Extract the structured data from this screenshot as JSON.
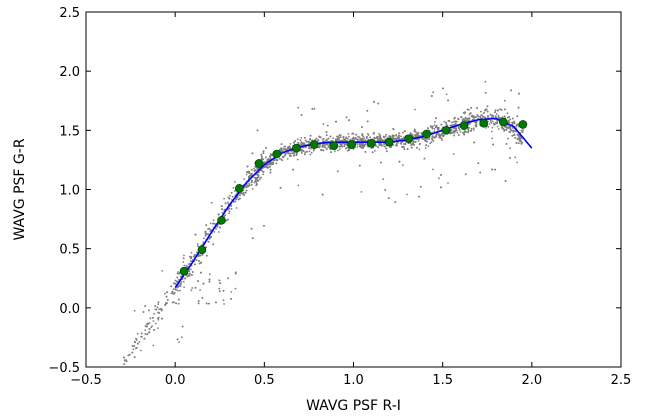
{
  "chart_data": {
    "type": "scatter",
    "xlabel": "WAVG PSF R-I",
    "ylabel": "WAVG PSF G-R",
    "xlim": [
      -0.5,
      2.5
    ],
    "ylim": [
      -0.5,
      2.5
    ],
    "xticks": [
      "−0.5",
      "0.0",
      "0.5",
      "1.0",
      "1.5",
      "2.0",
      "2.5"
    ],
    "yticks": [
      "−0.5",
      "0.0",
      "0.5",
      "1.0",
      "1.5",
      "2.0",
      "2.5"
    ],
    "grid": false,
    "colors": {
      "scatter": "#808080",
      "binned": "#007a00",
      "fit": "#0000ff"
    },
    "series": [
      {
        "kind": "scatter-cloud",
        "description_values": "dense gray scatter of individual objects following the stellar locus",
        "approx_x_range": [
          -0.35,
          2.0
        ],
        "approx_y_range": [
          -0.45,
          2.05
        ]
      },
      {
        "kind": "binned-medians",
        "x": [
          0.05,
          0.15,
          0.26,
          0.36,
          0.47,
          0.57,
          0.68,
          0.78,
          0.89,
          0.99,
          1.1,
          1.2,
          1.31,
          1.41,
          1.52,
          1.62,
          1.73,
          1.84,
          1.95
        ],
        "y": [
          0.31,
          0.49,
          0.74,
          1.01,
          1.22,
          1.3,
          1.35,
          1.38,
          1.37,
          1.38,
          1.39,
          1.4,
          1.43,
          1.47,
          1.5,
          1.54,
          1.56,
          1.57,
          1.55
        ]
      },
      {
        "kind": "polynomial-fit",
        "x": [
          0.0,
          0.1,
          0.2,
          0.3,
          0.4,
          0.5,
          0.6,
          0.7,
          0.8,
          0.9,
          1.0,
          1.1,
          1.2,
          1.3,
          1.4,
          1.5,
          1.6,
          1.7,
          1.8,
          1.9,
          2.0
        ],
        "y": [
          0.17,
          0.39,
          0.63,
          0.86,
          1.06,
          1.21,
          1.31,
          1.36,
          1.39,
          1.4,
          1.4,
          1.4,
          1.4,
          1.42,
          1.45,
          1.5,
          1.55,
          1.59,
          1.6,
          1.53,
          1.35
        ]
      }
    ]
  }
}
